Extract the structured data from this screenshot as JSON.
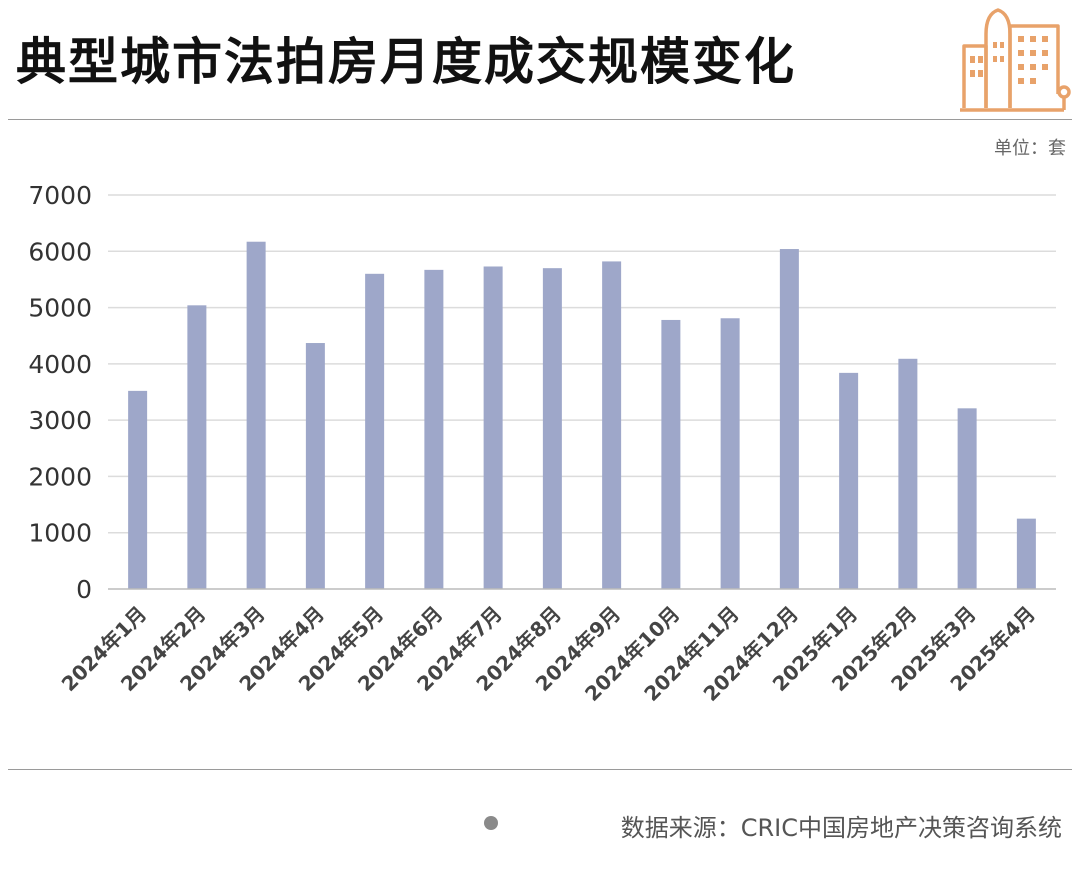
{
  "header": {
    "title": "典型城市法拍房月度成交规模变化",
    "unit_label": "单位：套"
  },
  "footer": {
    "source": "数据来源：CRIC中国房地产决策咨询系统"
  },
  "colors": {
    "bar": "#9ea7c9",
    "logo": "#e8a26a",
    "grid": "#dcdcdc",
    "axis_text": "#333333"
  },
  "chart_data": {
    "type": "bar",
    "categories": [
      "2024年1月",
      "2024年2月",
      "2024年3月",
      "2024年4月",
      "2024年5月",
      "2024年6月",
      "2024年7月",
      "2024年8月",
      "2024年9月",
      "2024年10月",
      "2024年11月",
      "2024年12月",
      "2025年1月",
      "2025年2月",
      "2025年3月",
      "2025年4月"
    ],
    "values": [
      3520,
      5040,
      6170,
      4370,
      5600,
      5670,
      5730,
      5700,
      5820,
      4780,
      4810,
      6040,
      3840,
      4090,
      3210,
      1250
    ],
    "yticks": [
      0,
      1000,
      2000,
      3000,
      4000,
      5000,
      6000,
      7000
    ],
    "ylim": [
      0,
      7000
    ],
    "grid": true,
    "legend": "none"
  }
}
